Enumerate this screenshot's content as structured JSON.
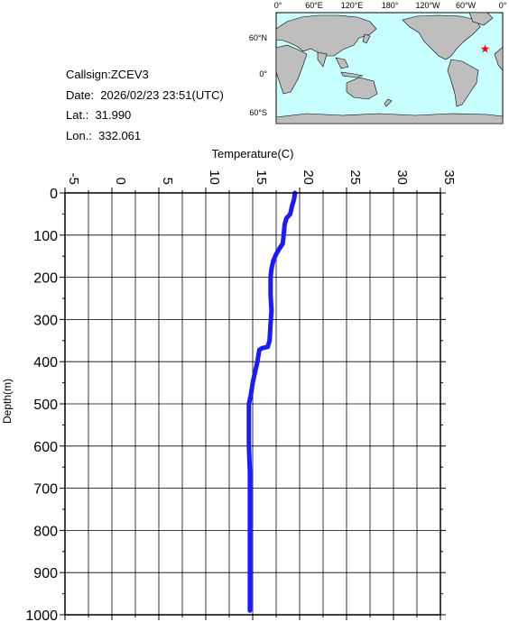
{
  "info": {
    "callsign": "Callsign:ZCEV3",
    "date": "Date:  2026/02/23 23:51(UTC)",
    "lat": "Lat.:  31.990",
    "lon": "Lon.:  332.061"
  },
  "map": {
    "top_labels": [
      "0°",
      "60°E",
      "120°E",
      "180°",
      "120°W",
      "60°W",
      "0°"
    ],
    "left_labels": [
      "60°N",
      "0°",
      "60°S"
    ],
    "marker": {
      "lon": 332.061,
      "lat": 31.99
    },
    "colors": {
      "ocean": "#c8ffff",
      "land": "#bebebe",
      "marker": "#ff0000"
    }
  },
  "chart_data": {
    "type": "line",
    "xlabel": "Temperature(C)",
    "ylabel": "Depth(m)",
    "xlim": [
      -5,
      35
    ],
    "ylim": [
      0,
      1000
    ],
    "x_ticks": [
      "-5",
      "0",
      "5",
      "10",
      "15",
      "20",
      "25",
      "30",
      "35"
    ],
    "y_ticks": [
      "0",
      "100",
      "200",
      "300",
      "400",
      "500",
      "600",
      "700",
      "800",
      "900",
      "1000"
    ],
    "series": [
      {
        "color": "#1a1aff",
        "points": [
          [
            19.5,
            0
          ],
          [
            19.4,
            15
          ],
          [
            19.2,
            30
          ],
          [
            19.0,
            50
          ],
          [
            18.6,
            60
          ],
          [
            18.4,
            75
          ],
          [
            18.3,
            100
          ],
          [
            18.2,
            120
          ],
          [
            17.9,
            130
          ],
          [
            17.5,
            145
          ],
          [
            17.2,
            160
          ],
          [
            17.0,
            180
          ],
          [
            16.9,
            200
          ],
          [
            16.9,
            240
          ],
          [
            17.0,
            280
          ],
          [
            16.9,
            310
          ],
          [
            16.8,
            350
          ],
          [
            16.6,
            365
          ],
          [
            16.0,
            368
          ],
          [
            15.7,
            372
          ],
          [
            15.5,
            400
          ],
          [
            15.3,
            420
          ],
          [
            15.0,
            450
          ],
          [
            14.8,
            480
          ],
          [
            14.6,
            500
          ],
          [
            14.6,
            540
          ],
          [
            14.6,
            600
          ],
          [
            14.7,
            660
          ],
          [
            14.7,
            700
          ],
          [
            14.7,
            800
          ],
          [
            14.7,
            900
          ],
          [
            14.7,
            990
          ]
        ]
      }
    ]
  }
}
